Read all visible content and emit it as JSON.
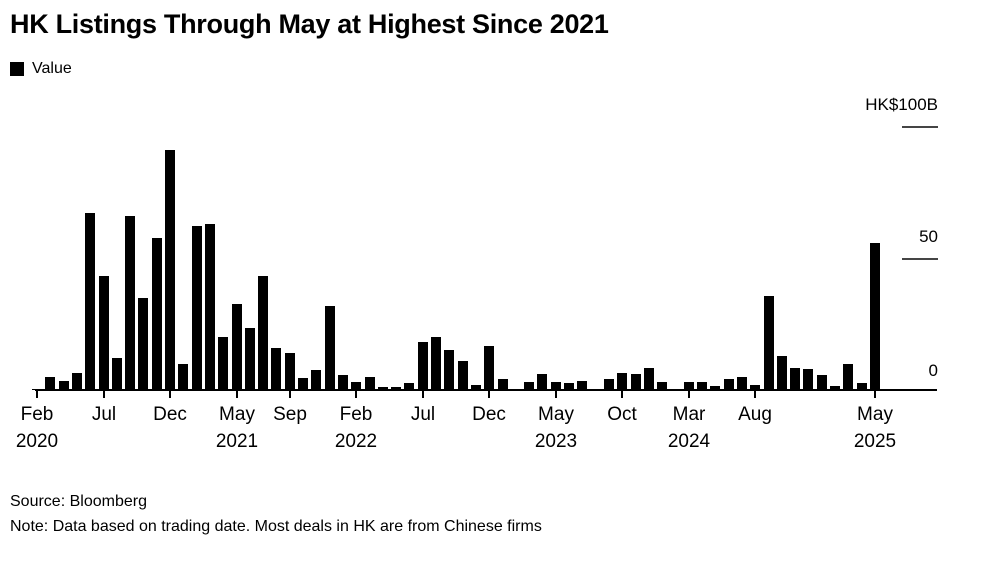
{
  "title": "HK Listings Through May at Highest Since 2021",
  "legend": {
    "label": "Value",
    "swatch_color": "#000000"
  },
  "footer": {
    "source": "Source: Bloomberg",
    "note": "Note: Data based on trading date. Most deals in HK are from Chinese firms"
  },
  "colors": {
    "bar": "#000000",
    "background": "#ffffff",
    "text": "#000000",
    "tick_line": "#454545"
  },
  "chart_data": {
    "type": "bar",
    "title": "HK Listings Through May at Highest Since 2021",
    "series_name": "Value",
    "unit": "HK$ billions",
    "ylim": [
      0,
      100
    ],
    "grid": false,
    "legend_position": "top-left",
    "y_axis_label": "HK$100B",
    "y_ticks": [
      {
        "value": 100,
        "label": "HK$100B",
        "show_line": true
      },
      {
        "value": 50,
        "label": "50",
        "show_line": true
      },
      {
        "value": 0,
        "label": "0",
        "show_line": false
      }
    ],
    "categories": [
      "Feb 2020",
      "Mar 2020",
      "Apr 2020",
      "May 2020",
      "Jun 2020",
      "Jul 2020",
      "Aug 2020",
      "Sep 2020",
      "Oct 2020",
      "Nov 2020",
      "Dec 2020",
      "Jan 2021",
      "Feb 2021",
      "Mar 2021",
      "Apr 2021",
      "May 2021",
      "Jun 2021",
      "Jul 2021",
      "Aug 2021",
      "Sep 2021",
      "Oct 2021",
      "Nov 2021",
      "Dec 2021",
      "Jan 2022",
      "Feb 2022",
      "Mar 2022",
      "Apr 2022",
      "May 2022",
      "Jun 2022",
      "Jul 2022",
      "Aug 2022",
      "Sep 2022",
      "Oct 2022",
      "Nov 2022",
      "Dec 2022",
      "Jan 2023",
      "Feb 2023",
      "Mar 2023",
      "Apr 2023",
      "May 2023",
      "Jun 2023",
      "Jul 2023",
      "Aug 2023",
      "Sep 2023",
      "Oct 2023",
      "Nov 2023",
      "Dec 2023",
      "Jan 2024",
      "Feb 2024",
      "Mar 2024",
      "Apr 2024",
      "May 2024",
      "Jun 2024",
      "Jul 2024",
      "Aug 2024",
      "Sep 2024",
      "Oct 2024",
      "Nov 2024",
      "Dec 2024",
      "Jan 2025",
      "Feb 2025",
      "Mar 2025",
      "Apr 2025",
      "May 2025"
    ],
    "values": [
      0.5,
      5,
      3.5,
      6.5,
      67,
      43,
      12,
      66,
      35,
      57.5,
      91,
      10,
      62,
      63,
      20,
      32.5,
      23.5,
      43,
      16,
      14,
      4.5,
      7.5,
      32,
      5.5,
      3,
      5,
      1,
      1.2,
      2.7,
      18,
      20,
      15,
      11,
      2,
      16.5,
      4,
      0,
      3,
      6,
      3,
      2.5,
      3.5,
      0,
      4,
      6.5,
      6,
      8.5,
      3,
      0,
      3,
      3,
      1.5,
      4,
      5,
      2,
      35.5,
      13,
      8.5,
      8,
      5.5,
      1.5,
      10,
      2.5,
      55.5
    ],
    "x_ticks": [
      {
        "index": 0,
        "month": "Feb",
        "year": "2020"
      },
      {
        "index": 5,
        "month": "Jul",
        "year": ""
      },
      {
        "index": 10,
        "month": "Dec",
        "year": ""
      },
      {
        "index": 15,
        "month": "May",
        "year": "2021"
      },
      {
        "index": 19,
        "month": "Sep",
        "year": ""
      },
      {
        "index": 24,
        "month": "Feb",
        "year": "2022"
      },
      {
        "index": 29,
        "month": "Jul",
        "year": ""
      },
      {
        "index": 34,
        "month": "Dec",
        "year": ""
      },
      {
        "index": 39,
        "month": "May",
        "year": "2023"
      },
      {
        "index": 44,
        "month": "Oct",
        "year": ""
      },
      {
        "index": 49,
        "month": "Mar",
        "year": "2024"
      },
      {
        "index": 54,
        "month": "Aug",
        "year": ""
      },
      {
        "index": 63,
        "month": "May",
        "year": "2025"
      }
    ]
  }
}
